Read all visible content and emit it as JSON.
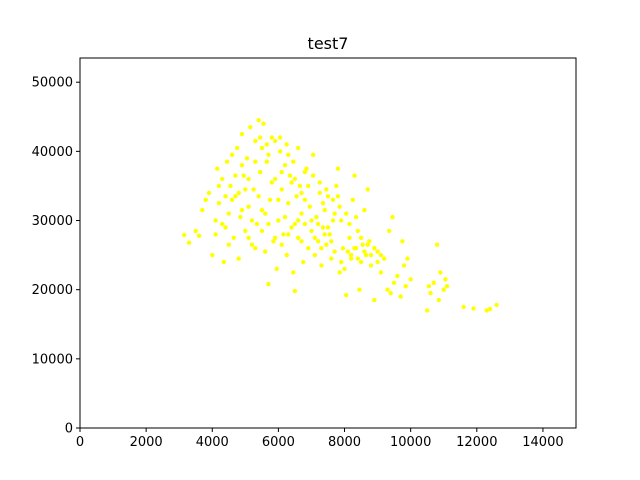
{
  "chart_data": {
    "type": "scatter",
    "title": "test7",
    "xlabel": "",
    "ylabel": "",
    "xlim": [
      0,
      15000
    ],
    "ylim": [
      0,
      53500
    ],
    "xticks": [
      0,
      2000,
      4000,
      6000,
      8000,
      10000,
      12000,
      14000
    ],
    "yticks": [
      0,
      10000,
      20000,
      30000,
      40000,
      50000
    ],
    "grid": false,
    "marker_color": "#ffff00",
    "series": [
      {
        "points": [
          [
            3150,
            27900
          ],
          [
            3300,
            26800
          ],
          [
            3500,
            28500
          ],
          [
            3600,
            27800
          ],
          [
            3700,
            31500
          ],
          [
            3800,
            33000
          ],
          [
            3900,
            34000
          ],
          [
            4000,
            25000
          ],
          [
            4100,
            30000
          ],
          [
            4150,
            37500
          ],
          [
            4200,
            32500
          ],
          [
            4300,
            36000
          ],
          [
            4350,
            24000
          ],
          [
            4400,
            29000
          ],
          [
            4450,
            38500
          ],
          [
            4500,
            31000
          ],
          [
            4550,
            35000
          ],
          [
            4600,
            39500
          ],
          [
            4650,
            27500
          ],
          [
            4700,
            33500
          ],
          [
            4750,
            40500
          ],
          [
            4800,
            24500
          ],
          [
            4850,
            30500
          ],
          [
            4900,
            42500
          ],
          [
            4950,
            36500
          ],
          [
            5000,
            28500
          ],
          [
            5050,
            39000
          ],
          [
            5100,
            32000
          ],
          [
            5150,
            43500
          ],
          [
            5200,
            26500
          ],
          [
            5250,
            34500
          ],
          [
            5300,
            41500
          ],
          [
            5350,
            29500
          ],
          [
            5400,
            44500
          ],
          [
            5450,
            37000
          ],
          [
            5500,
            31500
          ],
          [
            5550,
            44000
          ],
          [
            5600,
            25500
          ],
          [
            5650,
            38500
          ],
          [
            5700,
            20800
          ],
          [
            5750,
            33000
          ],
          [
            5800,
            42000
          ],
          [
            5850,
            27000
          ],
          [
            5900,
            36000
          ],
          [
            5950,
            23000
          ],
          [
            6000,
            30000
          ],
          [
            6050,
            40000
          ],
          [
            6100,
            34500
          ],
          [
            6150,
            28000
          ],
          [
            6200,
            38000
          ],
          [
            6250,
            25000
          ],
          [
            6300,
            32500
          ],
          [
            6350,
            36500
          ],
          [
            6400,
            29000
          ],
          [
            6450,
            22500
          ],
          [
            6500,
            19800
          ],
          [
            6550,
            33500
          ],
          [
            6600,
            27500
          ],
          [
            6650,
            35000
          ],
          [
            6700,
            31000
          ],
          [
            6750,
            24000
          ],
          [
            6800,
            29500
          ],
          [
            6850,
            37500
          ],
          [
            6900,
            26000
          ],
          [
            6950,
            32000
          ],
          [
            7000,
            28500
          ],
          [
            7050,
            39500
          ],
          [
            7100,
            25000
          ],
          [
            7150,
            30500
          ],
          [
            7200,
            27000
          ],
          [
            7250,
            34000
          ],
          [
            7300,
            23500
          ],
          [
            7350,
            29000
          ],
          [
            7400,
            31500
          ],
          [
            7450,
            26500
          ],
          [
            7500,
            33500
          ],
          [
            7550,
            28000
          ],
          [
            7600,
            24500
          ],
          [
            7650,
            30000
          ],
          [
            7700,
            25500
          ],
          [
            7750,
            35000
          ],
          [
            7800,
            37500
          ],
          [
            7850,
            22500
          ],
          [
            7900,
            24000
          ],
          [
            7950,
            26000
          ],
          [
            8000,
            23000
          ],
          [
            8050,
            19200
          ],
          [
            8100,
            25500
          ],
          [
            8150,
            27500
          ],
          [
            8200,
            24500
          ],
          [
            8250,
            33000
          ],
          [
            8300,
            36500
          ],
          [
            8350,
            26000
          ],
          [
            8400,
            28500
          ],
          [
            8450,
            20000
          ],
          [
            8500,
            24000
          ],
          [
            8550,
            26500
          ],
          [
            8600,
            31500
          ],
          [
            8650,
            25000
          ],
          [
            8700,
            34500
          ],
          [
            8750,
            27000
          ],
          [
            8800,
            23500
          ],
          [
            8900,
            18500
          ],
          [
            9000,
            25500
          ],
          [
            9100,
            22500
          ],
          [
            9200,
            24500
          ],
          [
            9300,
            20000
          ],
          [
            9350,
            28500
          ],
          [
            9400,
            19500
          ],
          [
            9450,
            30500
          ],
          [
            9500,
            21000
          ],
          [
            9600,
            22000
          ],
          [
            9700,
            19000
          ],
          [
            9750,
            27000
          ],
          [
            9800,
            23500
          ],
          [
            9850,
            20500
          ],
          [
            9900,
            24500
          ],
          [
            10000,
            21500
          ],
          [
            10500,
            17000
          ],
          [
            10550,
            20500
          ],
          [
            10600,
            19500
          ],
          [
            10700,
            21000
          ],
          [
            10800,
            26500
          ],
          [
            10850,
            18500
          ],
          [
            10900,
            22500
          ],
          [
            11000,
            20000
          ],
          [
            11050,
            21500
          ],
          [
            11100,
            20500
          ],
          [
            11600,
            17500
          ],
          [
            11900,
            17300
          ],
          [
            12300,
            17000
          ],
          [
            12400,
            17200
          ],
          [
            12600,
            17800
          ],
          [
            5200,
            30000
          ],
          [
            5400,
            33500
          ],
          [
            5600,
            31000
          ],
          [
            5800,
            35500
          ],
          [
            6000,
            33000
          ],
          [
            6200,
            30500
          ],
          [
            6400,
            35500
          ],
          [
            6600,
            30000
          ],
          [
            6800,
            33000
          ],
          [
            7000,
            30000
          ],
          [
            5100,
            36000
          ],
          [
            5300,
            38500
          ],
          [
            5500,
            40500
          ],
          [
            5700,
            39500
          ],
          [
            5900,
            41500
          ],
          [
            6100,
            37000
          ],
          [
            6300,
            39500
          ],
          [
            6500,
            36000
          ],
          [
            6700,
            34000
          ],
          [
            6900,
            35000
          ],
          [
            4900,
            31500
          ],
          [
            5100,
            27500
          ],
          [
            5300,
            26000
          ],
          [
            5500,
            28500
          ],
          [
            5700,
            29500
          ],
          [
            5900,
            27500
          ],
          [
            6100,
            26500
          ],
          [
            6300,
            28000
          ],
          [
            6500,
            29500
          ],
          [
            6700,
            27000
          ],
          [
            7100,
            27500
          ],
          [
            7200,
            29500
          ],
          [
            7300,
            26000
          ],
          [
            7400,
            28000
          ],
          [
            7500,
            29000
          ],
          [
            7600,
            27000
          ],
          [
            7700,
            31000
          ],
          [
            7800,
            33500
          ],
          [
            7900,
            30000
          ],
          [
            7350,
            32500
          ],
          [
            8200,
            25000
          ],
          [
            8300,
            26000
          ],
          [
            8400,
            24500
          ],
          [
            8500,
            27500
          ],
          [
            8600,
            25500
          ],
          [
            8700,
            26500
          ],
          [
            8800,
            25000
          ],
          [
            8900,
            26000
          ],
          [
            9000,
            24000
          ],
          [
            9100,
            25000
          ],
          [
            4600,
            33000
          ],
          [
            4700,
            36500
          ],
          [
            4800,
            34000
          ],
          [
            4900,
            38000
          ],
          [
            5000,
            34500
          ],
          [
            4300,
            29500
          ],
          [
            4400,
            33500
          ],
          [
            4500,
            26500
          ],
          [
            4200,
            35000
          ],
          [
            4100,
            28000
          ],
          [
            6050,
            42000
          ],
          [
            5650,
            41000
          ],
          [
            5450,
            42000
          ],
          [
            6250,
            41000
          ],
          [
            6450,
            38500
          ],
          [
            6600,
            40500
          ],
          [
            6800,
            37000
          ],
          [
            7050,
            36500
          ],
          [
            7250,
            35500
          ],
          [
            7450,
            34500
          ],
          [
            7650,
            33000
          ],
          [
            7850,
            32000
          ],
          [
            8050,
            31000
          ],
          [
            8150,
            29500
          ],
          [
            8350,
            30500
          ]
        ]
      }
    ]
  }
}
